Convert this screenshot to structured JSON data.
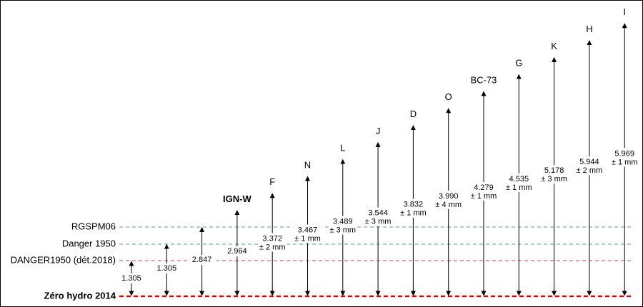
{
  "reference_lines": [
    {
      "label": "RGSPM06",
      "color": "#5a9e8a",
      "style": "dashed"
    },
    {
      "label": "Danger 1950",
      "color": "#5a9e8a",
      "style": "dashed"
    },
    {
      "label": "DANGER1950 (dét.2018)",
      "color": "#c84040",
      "style": "dashed"
    },
    {
      "label": "Zéro hydro 2014",
      "color": "#e00000",
      "style": "dashed",
      "bold": true
    }
  ],
  "arrows": [
    {
      "value": "1.305"
    },
    {
      "value": "1.305"
    },
    {
      "value": "2.847"
    },
    {
      "label": "IGN-W",
      "bold": true,
      "value": "2.964"
    },
    {
      "label": "F",
      "value": "3.372",
      "uncertainty": "± 2 mm"
    },
    {
      "label": "N",
      "value": "3.467",
      "uncertainty": "± 1 mm"
    },
    {
      "label": "L",
      "value": "3.489",
      "uncertainty": "± 3 mm"
    },
    {
      "label": "J",
      "value": "3.544",
      "uncertainty": "± 3 mm"
    },
    {
      "label": "D",
      "value": "3.832",
      "uncertainty": "± 1 mm"
    },
    {
      "label": "O",
      "value": "3.990",
      "uncertainty": "± 4 mm"
    },
    {
      "label": "BC-73",
      "value": "4.279",
      "uncertainty": "± 1 mm"
    },
    {
      "label": "G",
      "value": "4.535",
      "uncertainty": "± 1 mm"
    },
    {
      "label": "K",
      "value": "5.178",
      "uncertainty": "± 3 mm"
    },
    {
      "label": "H",
      "value": "5.944",
      "uncertainty": "± 2 mm"
    },
    {
      "label": "I",
      "value": "5.969",
      "uncertainty": "± 1 mm"
    }
  ]
}
